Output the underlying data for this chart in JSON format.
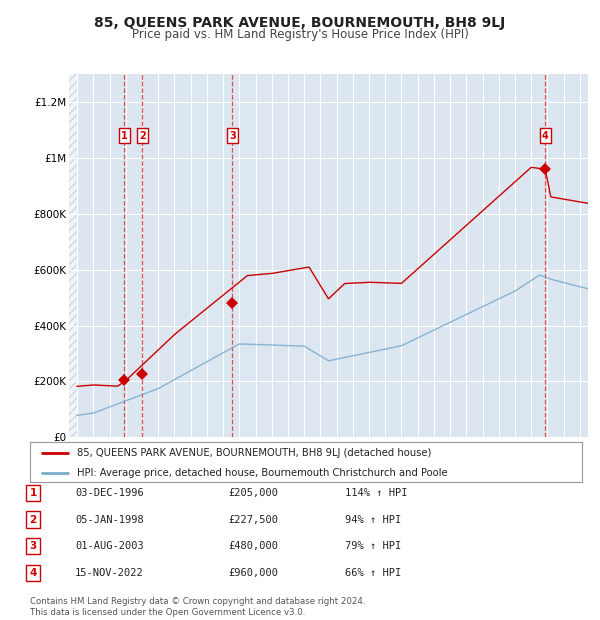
{
  "title": "85, QUEENS PARK AVENUE, BOURNEMOUTH, BH8 9LJ",
  "subtitle": "Price paid vs. HM Land Registry's House Price Index (HPI)",
  "title_fontsize": 10,
  "subtitle_fontsize": 8.5,
  "background_color": "#ffffff",
  "plot_bg_color": "#dce6f0",
  "hatch_color": "#b0b8c8",
  "grid_color": "#ffffff",
  "red_line_color": "#cc0000",
  "blue_line_color": "#7aaacc",
  "vline_color": "#dd3333",
  "marker_color": "#cc0000",
  "sale_points": [
    {
      "date_num": 1996.92,
      "price": 205000,
      "label": "1"
    },
    {
      "date_num": 1998.02,
      "price": 227500,
      "label": "2"
    },
    {
      "date_num": 2003.58,
      "price": 480000,
      "label": "3"
    },
    {
      "date_num": 2022.87,
      "price": 960000,
      "label": "4"
    }
  ],
  "legend_entries": [
    "85, QUEENS PARK AVENUE, BOURNEMOUTH, BH8 9LJ (detached house)",
    "HPI: Average price, detached house, Bournemouth Christchurch and Poole"
  ],
  "table_rows": [
    [
      "1",
      "03-DEC-1996",
      "£205,000",
      "114% ↑ HPI"
    ],
    [
      "2",
      "05-JAN-1998",
      "£227,500",
      "94% ↑ HPI"
    ],
    [
      "3",
      "01-AUG-2003",
      "£480,000",
      "79% ↑ HPI"
    ],
    [
      "4",
      "15-NOV-2022",
      "£960,000",
      "66% ↑ HPI"
    ]
  ],
  "footer": "Contains HM Land Registry data © Crown copyright and database right 2024.\nThis data is licensed under the Open Government Licence v3.0.",
  "ylim": [
    0,
    1300000
  ],
  "xlim_start": 1993.5,
  "xlim_end": 2025.5,
  "yticks": [
    0,
    200000,
    400000,
    600000,
    800000,
    1000000,
    1200000
  ],
  "ytick_labels": [
    "£0",
    "£200K",
    "£400K",
    "£600K",
    "£800K",
    "£1M",
    "£1.2M"
  ],
  "xticks": [
    1994,
    1995,
    1996,
    1997,
    1998,
    1999,
    2000,
    2001,
    2002,
    2003,
    2004,
    2005,
    2006,
    2007,
    2008,
    2009,
    2010,
    2011,
    2012,
    2013,
    2014,
    2015,
    2016,
    2017,
    2018,
    2019,
    2020,
    2021,
    2022,
    2023,
    2024,
    2025
  ]
}
